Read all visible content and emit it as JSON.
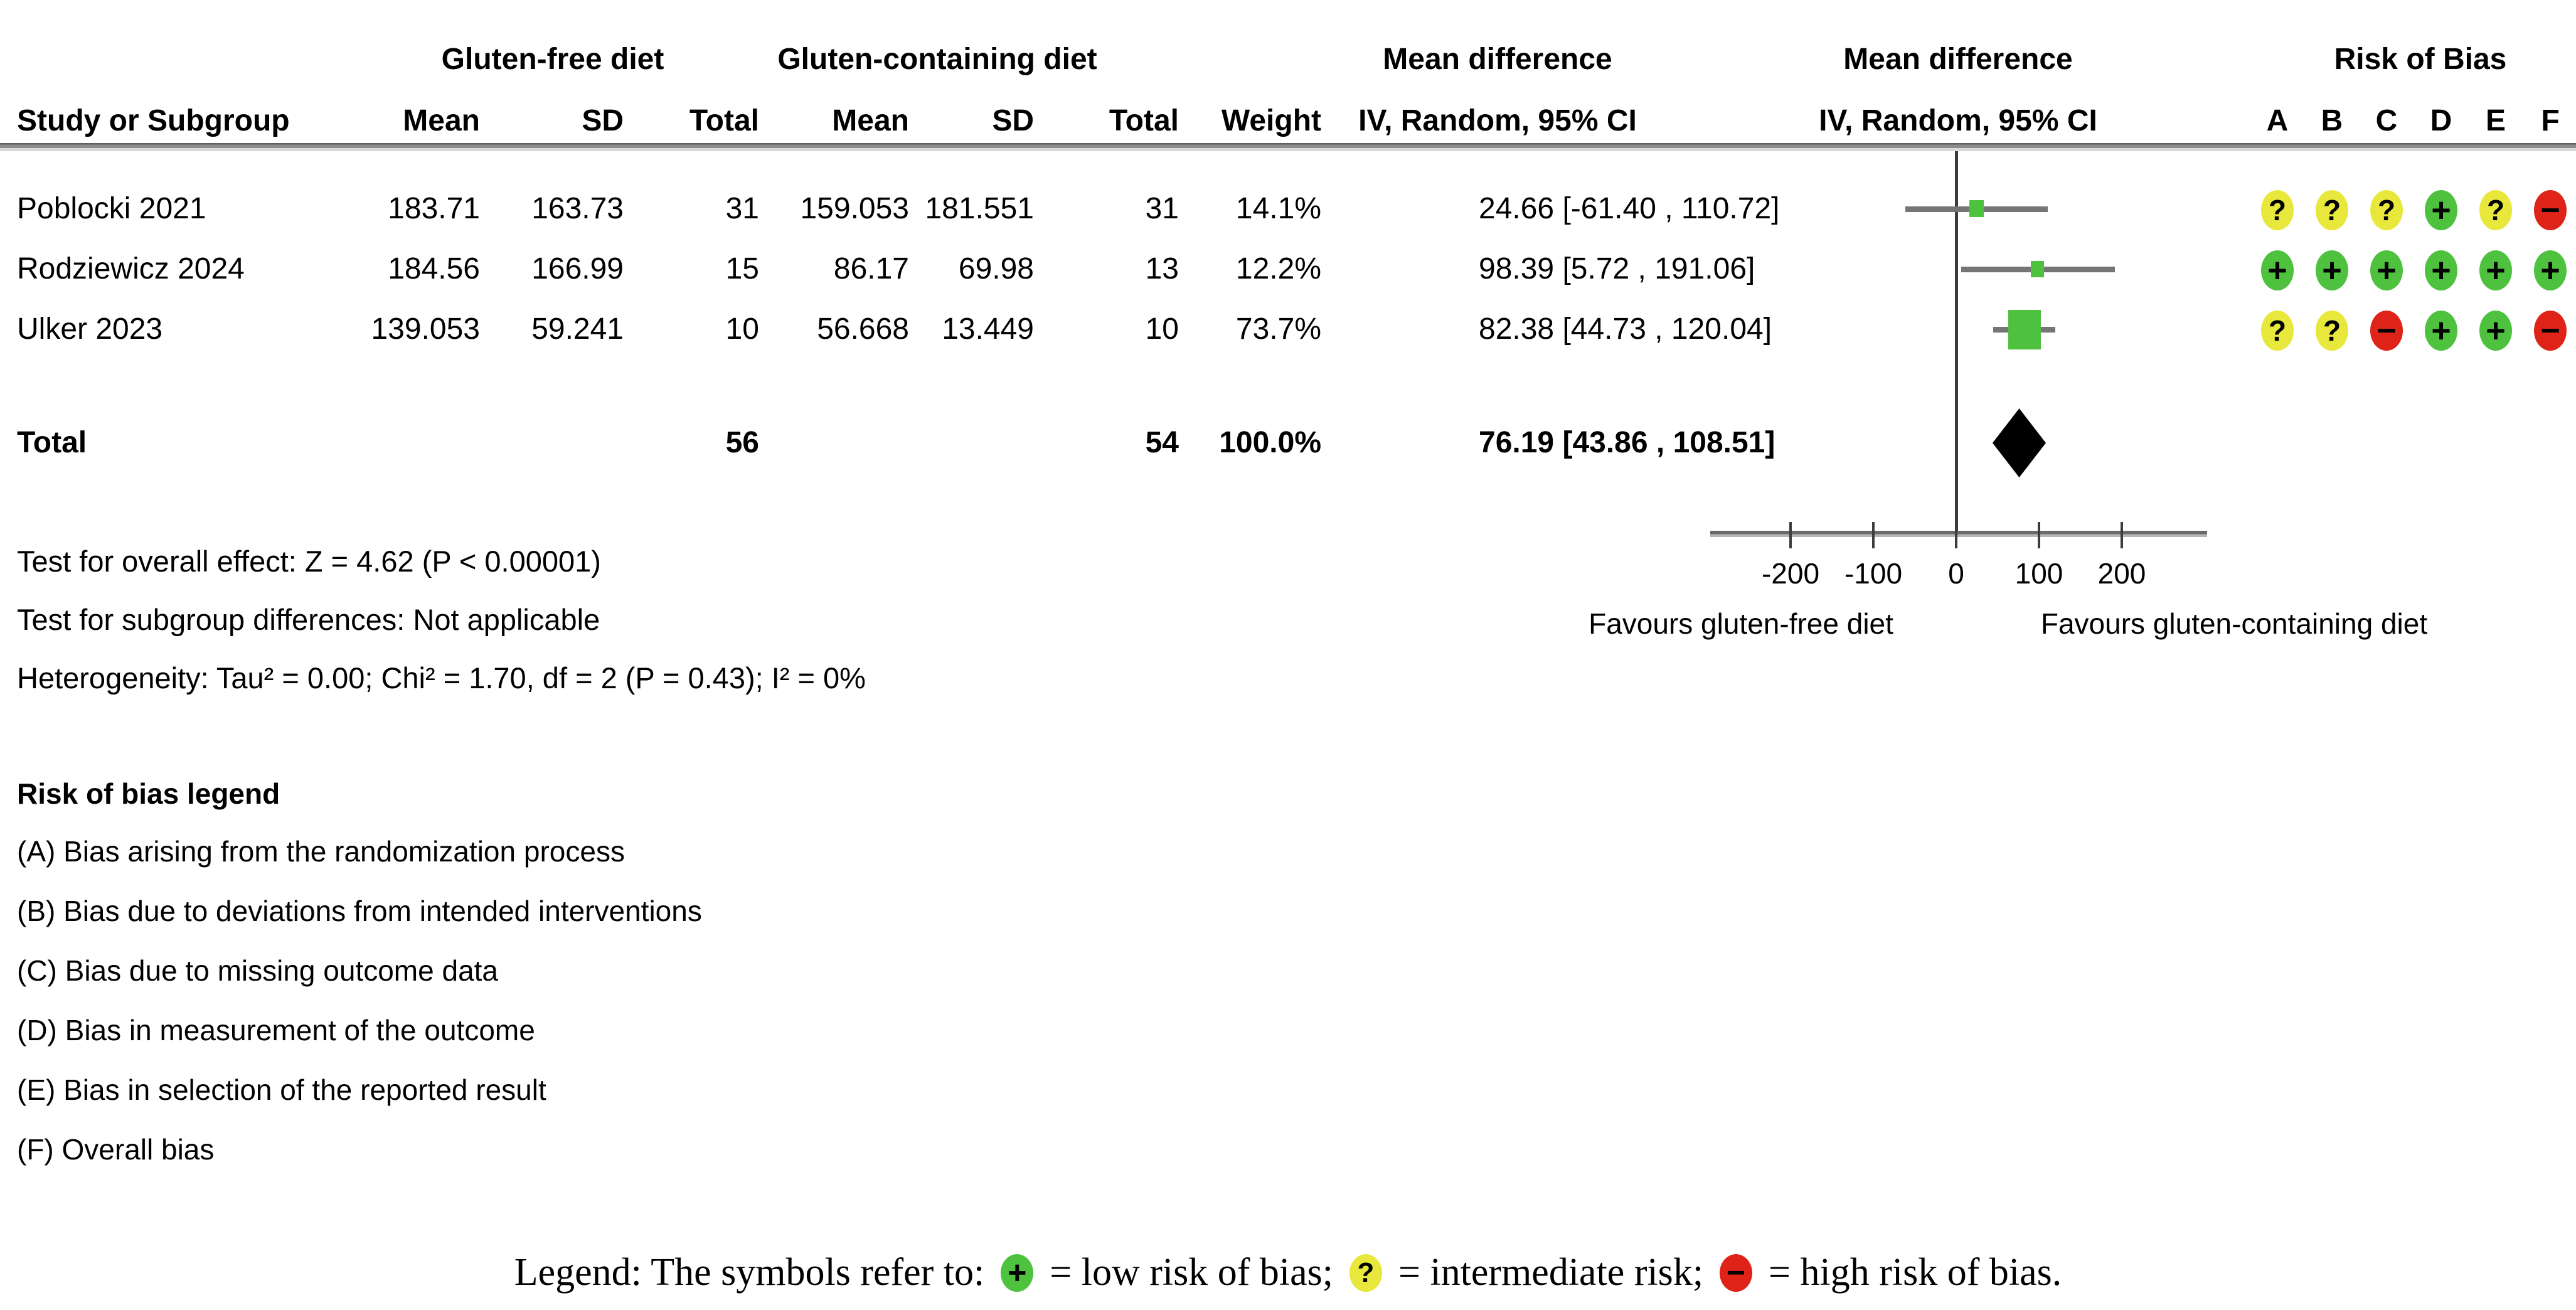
{
  "colors": {
    "low_risk_green": "#4ec13f",
    "intermediate_yellow": "#e8e83c",
    "high_risk_red": "#df2318",
    "ci_line_gray": "#757575",
    "axis_gray": "#6a6a6a",
    "diamond_black": "#000000"
  },
  "header": {
    "group1": "Gluten-free diet",
    "group2": "Gluten-containing diet",
    "md1": "Mean difference",
    "md2": "Mean difference",
    "rob": "Risk of Bias",
    "col_study": "Study or Subgroup",
    "col_mean": "Mean",
    "col_sd": "SD",
    "col_total": "Total",
    "col_weight": "Weight",
    "col_ci": "IV, Random, 95% CI",
    "rob_cols": [
      "A",
      "B",
      "C",
      "D",
      "E",
      "F"
    ]
  },
  "chart_data": {
    "type": "forest",
    "effect_measure": "Mean difference, IV, Random, 95% CI",
    "x_axis": {
      "ticks": [
        -200,
        -100,
        0,
        100,
        200
      ],
      "tick_labels": [
        "-200",
        "-100",
        "0",
        "100",
        "200"
      ],
      "range": [
        -300,
        300
      ],
      "left_label": "Favours gluten-free diet",
      "right_label": "Favours gluten-containing diet"
    },
    "studies": [
      {
        "name": "Poblocki 2021",
        "gf_mean": "183.71",
        "gf_sd": "163.73",
        "gf_total": "31",
        "gc_mean": "159.053",
        "gc_sd": "181.551",
        "gc_total": "31",
        "weight": "14.1%",
        "weight_pct": 14.1,
        "estimate": 24.66,
        "ci_low": -61.4,
        "ci_high": 110.72,
        "ci_text": "24.66 [-61.40 , 110.72]",
        "rob": [
          "?",
          "?",
          "?",
          "+",
          "?",
          "-"
        ]
      },
      {
        "name": "Rodziewicz 2024",
        "gf_mean": "184.56",
        "gf_sd": "166.99",
        "gf_total": "15",
        "gc_mean": "86.17",
        "gc_sd": "69.98",
        "gc_total": "13",
        "weight": "12.2%",
        "weight_pct": 12.2,
        "estimate": 98.39,
        "ci_low": 5.72,
        "ci_high": 191.06,
        "ci_text": "98.39 [5.72 , 191.06]",
        "rob": [
          "+",
          "+",
          "+",
          "+",
          "+",
          "+"
        ]
      },
      {
        "name": "Ulker 2023",
        "gf_mean": "139.053",
        "gf_sd": "59.241",
        "gf_total": "10",
        "gc_mean": "56.668",
        "gc_sd": "13.449",
        "gc_total": "10",
        "weight": "73.7%",
        "weight_pct": 73.7,
        "estimate": 82.38,
        "ci_low": 44.73,
        "ci_high": 120.04,
        "ci_text": "82.38 [44.73 , 120.04]",
        "rob": [
          "?",
          "?",
          "-",
          "+",
          "+",
          "-"
        ]
      }
    ],
    "total": {
      "name": "Total",
      "gf_total": "56",
      "gc_total": "54",
      "weight": "100.0%",
      "estimate": 76.19,
      "ci_low": 43.86,
      "ci_high": 108.51,
      "ci_text": "76.19 [43.86 , 108.51]"
    }
  },
  "footnotes": [
    "Test for overall effect: Z = 4.62 (P < 0.00001)",
    "Test for subgroup differences: Not applicable",
    "Heterogeneity: Tau² = 0.00; Chi² = 1.70, df = 2 (P = 0.43); I² = 0%"
  ],
  "rob_legend": {
    "title": "Risk of bias legend",
    "items": [
      "(A) Bias arising from the randomization process",
      "(B) Bias due to deviations from intended interventions",
      "(C) Bias due to missing outcome data",
      "(D) Bias in measurement of the outcome",
      "(E) Bias in selection of the reported result",
      "(F) Overall bias"
    ]
  },
  "caption": {
    "prefix": "Legend: The symbols refer to:",
    "segments": [
      {
        "icon": "+",
        "text": "= low risk of bias;"
      },
      {
        "icon": "?",
        "text": "= intermediate risk;"
      },
      {
        "icon": "-",
        "text": "= high risk of bias."
      }
    ]
  }
}
